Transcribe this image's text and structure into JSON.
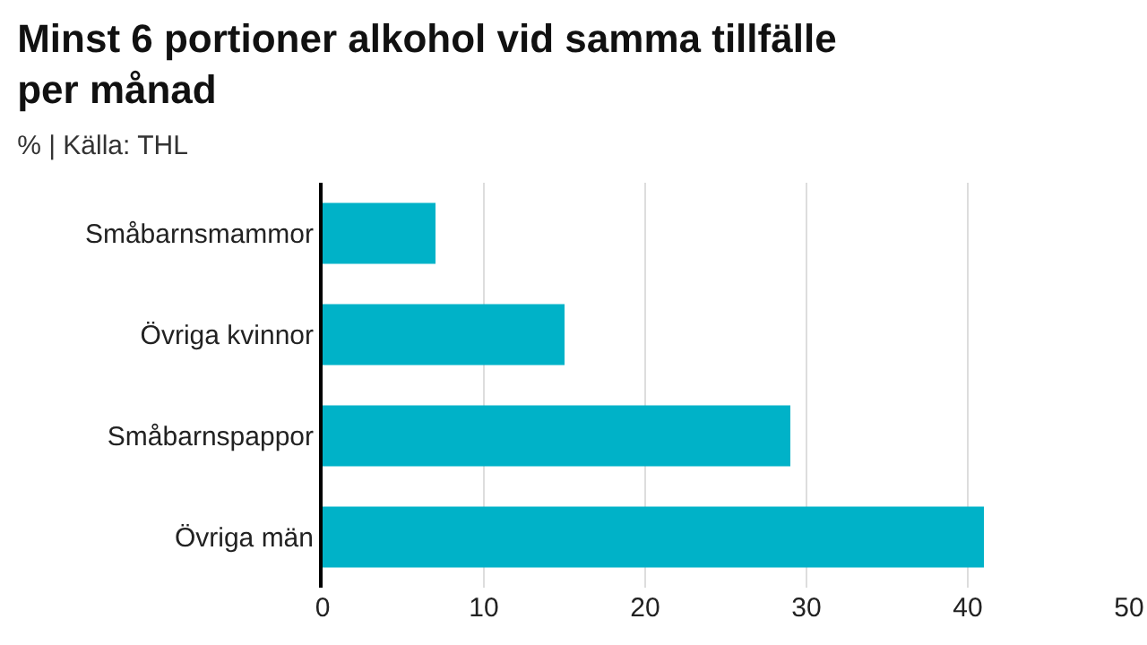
{
  "chart_data": {
    "type": "bar",
    "orientation": "horizontal",
    "title": "Minst 6 portioner alkohol vid samma tillfälle per månad",
    "subtitle": "% | Källa: THL",
    "categories": [
      "Småbarnsmammor",
      "Övriga kvinnor",
      "Småbarnspappor",
      "Övriga män"
    ],
    "values": [
      7,
      15,
      29,
      41
    ],
    "color": "#00b2c8",
    "xlim": [
      0,
      50
    ],
    "xticks": [
      0,
      10,
      20,
      30,
      40,
      50
    ],
    "grid": "x",
    "legend": false
  }
}
